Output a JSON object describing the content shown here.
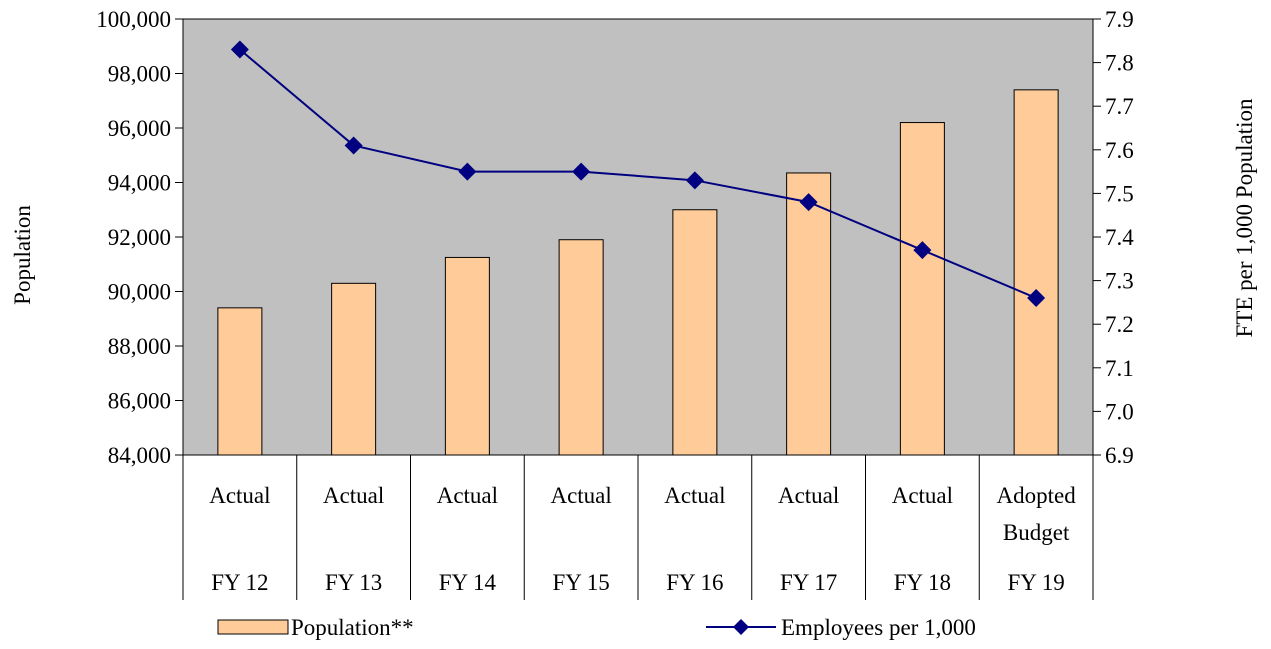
{
  "chart_data": {
    "type": "bar",
    "categories": [
      [
        "Actual",
        "FY 12"
      ],
      [
        "Actual",
        "FY 13"
      ],
      [
        "Actual",
        "FY 14"
      ],
      [
        "Actual",
        "FY 15"
      ],
      [
        "Actual",
        "FY 16"
      ],
      [
        "Actual",
        "FY 17"
      ],
      [
        "Actual",
        "FY 18"
      ],
      [
        "Adopted Budget",
        "FY 19"
      ]
    ],
    "category_labels": {
      "row1": [
        "Actual",
        "Actual",
        "Actual",
        "Actual",
        "Actual",
        "Actual",
        "Actual",
        "Adopted"
      ],
      "row1b": [
        "",
        "",
        "",
        "",
        "",
        "",
        "",
        "Budget"
      ],
      "row2": [
        "FY 12",
        "FY 13",
        "FY 14",
        "FY 15",
        "FY 16",
        "FY 17",
        "FY 18",
        "FY 19"
      ]
    },
    "series": [
      {
        "name": "Population**",
        "type": "bar",
        "axis": "left",
        "color": "#FFCC99",
        "values": [
          89400,
          90300,
          91250,
          91900,
          93000,
          94350,
          96200,
          97400
        ]
      },
      {
        "name": "Employees per 1,000",
        "type": "line",
        "axis": "right",
        "color": "#000080",
        "marker": "diamond",
        "values": [
          7.83,
          7.61,
          7.55,
          7.55,
          7.53,
          7.48,
          7.37,
          7.26
        ]
      }
    ],
    "ylabel": "Population",
    "y2label": "FTE per 1,000 Population",
    "ylim": [
      84000,
      100000
    ],
    "y2lim": [
      6.9,
      7.9
    ],
    "yticks": [
      84000,
      86000,
      88000,
      90000,
      92000,
      94000,
      96000,
      98000,
      100000
    ],
    "ytick_labels": [
      "84,000",
      "86,000",
      "88,000",
      "90,000",
      "92,000",
      "94,000",
      "96,000",
      "98,000",
      "100,000"
    ],
    "y2ticks": [
      6.9,
      7.0,
      7.1,
      7.2,
      7.3,
      7.4,
      7.5,
      7.6,
      7.7,
      7.8,
      7.9
    ],
    "y2tick_labels": [
      "6.9",
      "7.0",
      "7.1",
      "7.2",
      "7.3",
      "7.4",
      "7.5",
      "7.6",
      "7.7",
      "7.8",
      "7.9"
    ],
    "plot_background": "#C0C0C0",
    "grid": false,
    "legend": "bottom"
  }
}
